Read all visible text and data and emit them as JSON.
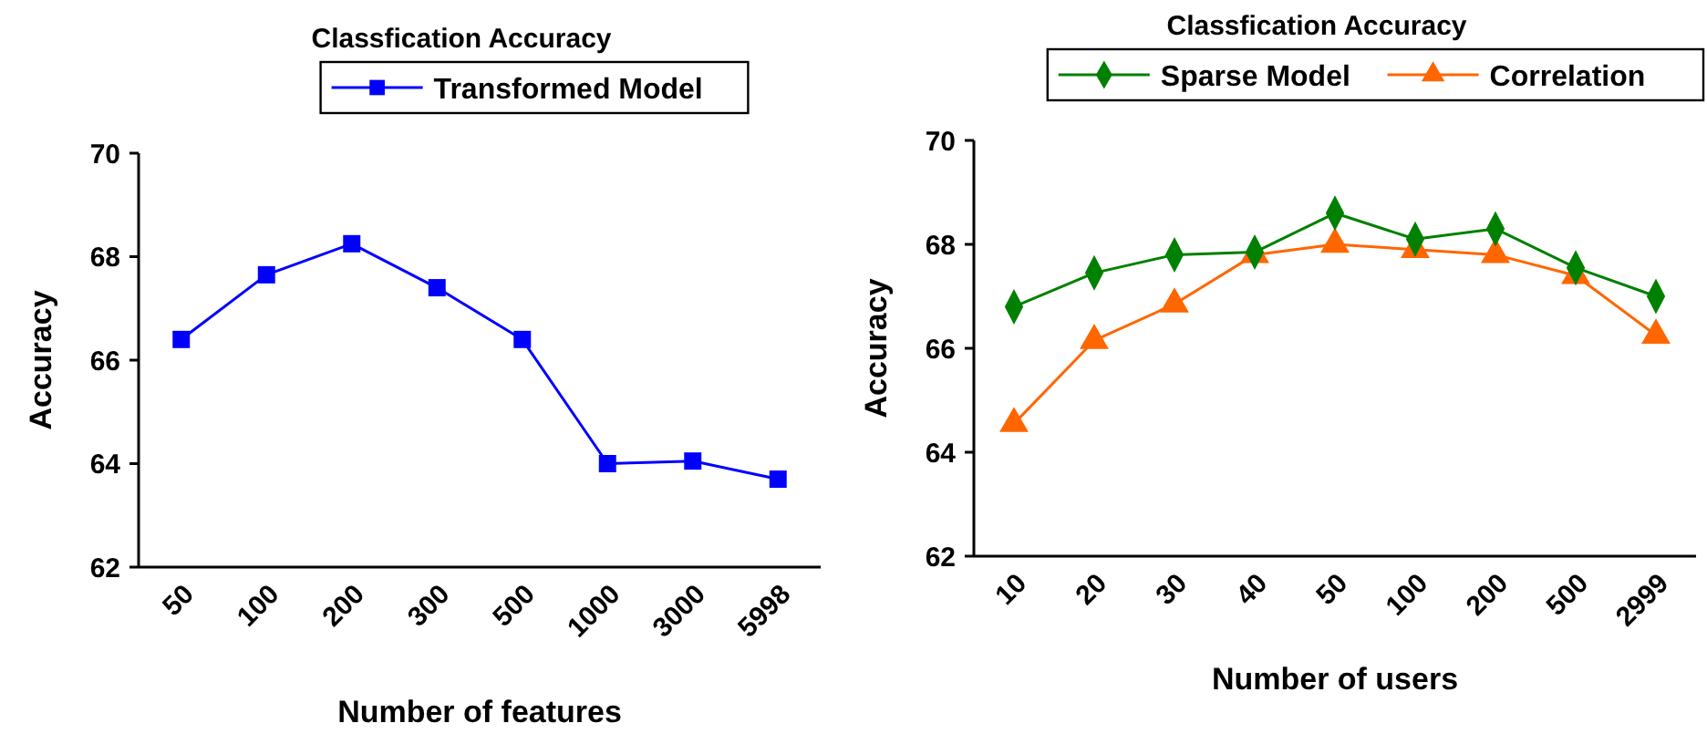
{
  "chart_data": [
    {
      "type": "line",
      "title": "Classfication Accuracy",
      "xlabel": "Number of features",
      "ylabel": "Accuracy",
      "categories": [
        "50",
        "100",
        "200",
        "300",
        "500",
        "1000",
        "3000",
        "5998"
      ],
      "series": [
        {
          "name": "Transformed Model",
          "color": "#0000ff",
          "values": [
            66.4,
            67.65,
            68.25,
            67.4,
            66.4,
            64.0,
            64.05,
            63.7
          ]
        }
      ],
      "ylim": [
        62,
        70
      ],
      "yticks": [
        62,
        64,
        66,
        68,
        70
      ],
      "grid": false,
      "legend": "top",
      "marker": "square",
      "line_style": "solid"
    },
    {
      "type": "line",
      "title": "Classfication Accuracy",
      "xlabel": "Number of users",
      "ylabel": "Accuracy",
      "categories": [
        "10",
        "20",
        "30",
        "40",
        "50",
        "100",
        "200",
        "500",
        "2999"
      ],
      "series": [
        {
          "name": "Sparse Model",
          "color": "#008000",
          "values": [
            66.8,
            67.45,
            67.8,
            67.85,
            68.6,
            68.1,
            68.3,
            67.55,
            67.0
          ],
          "marker": "diamond"
        },
        {
          "name": "Correlation",
          "color": "#ff6600",
          "values": [
            64.55,
            66.15,
            66.85,
            67.8,
            68.0,
            67.9,
            67.8,
            67.4,
            66.25
          ],
          "marker": "triangle"
        }
      ],
      "ylim": [
        62,
        70
      ],
      "yticks": [
        62,
        64,
        66,
        68,
        70
      ],
      "grid": false,
      "legend": "top",
      "line_style": "solid"
    }
  ]
}
